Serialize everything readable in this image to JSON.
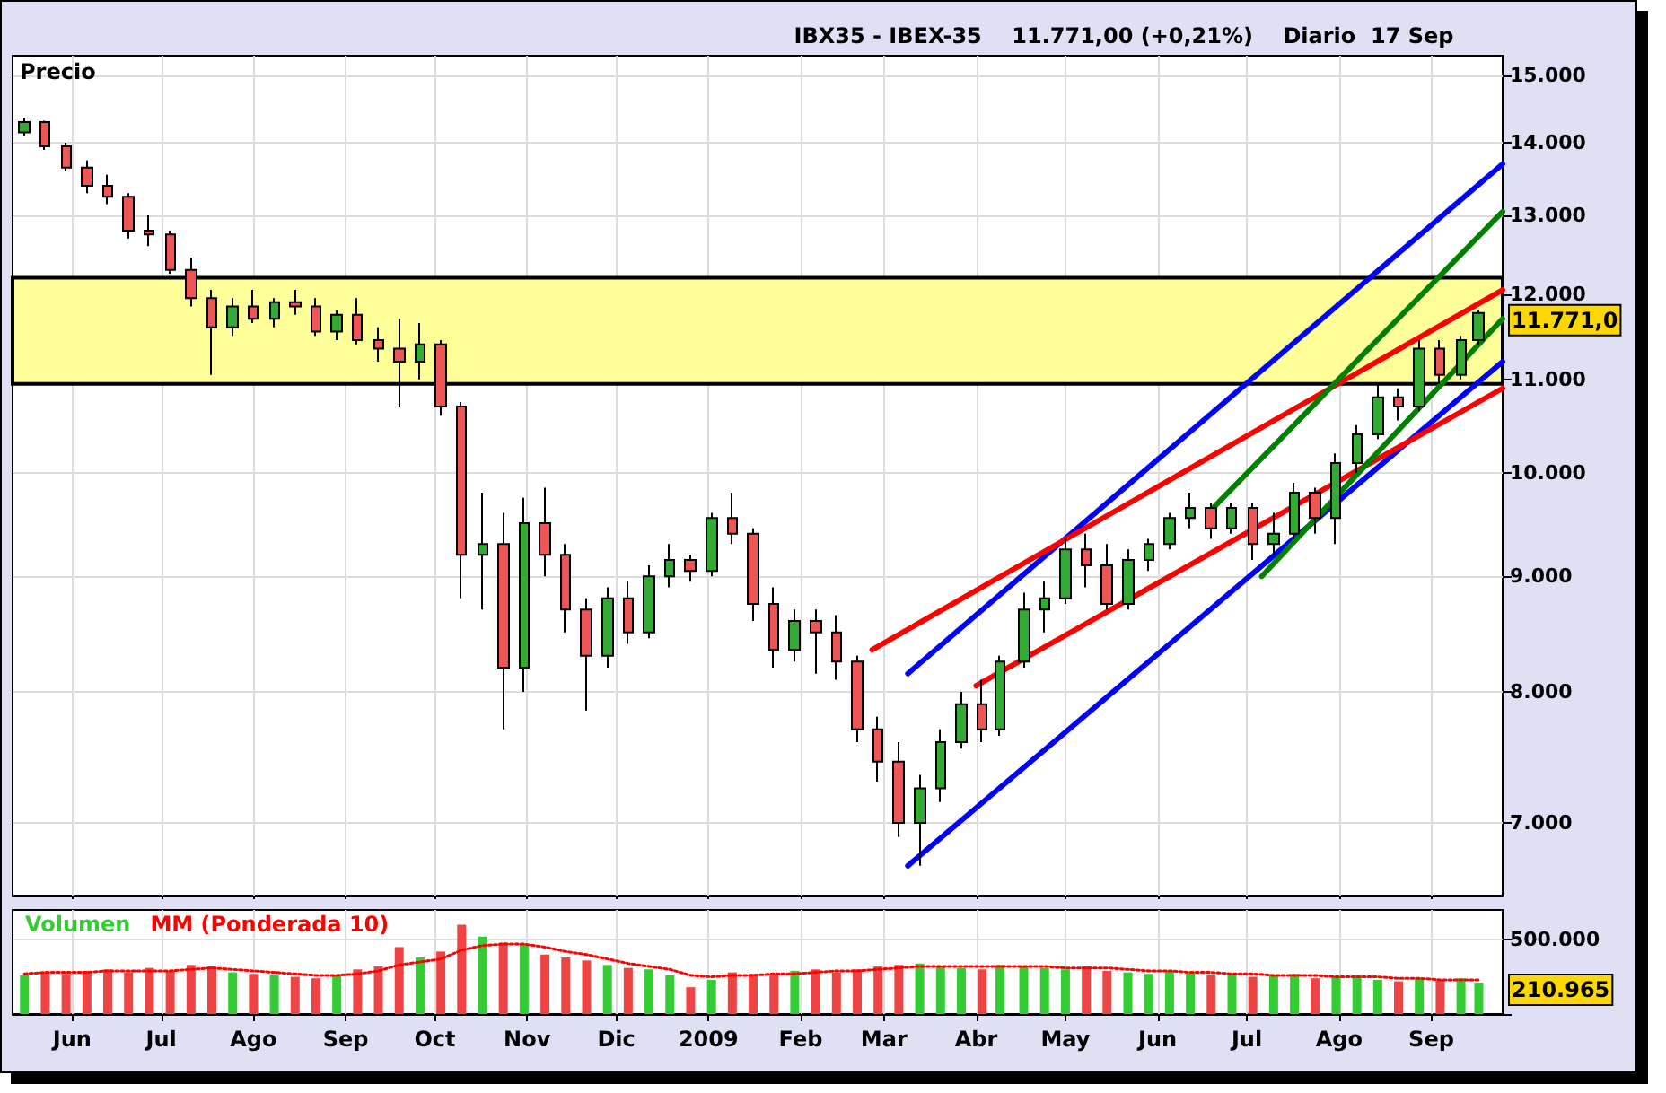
{
  "chart_data": [
    {
      "type": "candlestick",
      "title": "IBX35 - IBEX-35    11.771,00 (+0,21%)    Diario  17 Sep",
      "ylabel": "Precio",
      "x": [
        "2008-05-16",
        "2008-05-23",
        "2008-05-30",
        "2008-06-06",
        "2008-06-13",
        "2008-06-20",
        "2008-06-27",
        "2008-07-04",
        "2008-07-11",
        "2008-07-18",
        "2008-07-25",
        "2008-08-01",
        "2008-08-08",
        "2008-08-15",
        "2008-08-22",
        "2008-08-29",
        "2008-09-05",
        "2008-09-12",
        "2008-09-19",
        "2008-09-26",
        "2008-10-03",
        "2008-10-10",
        "2008-10-17",
        "2008-10-24",
        "2008-10-31",
        "2008-11-07",
        "2008-11-14",
        "2008-11-21",
        "2008-11-28",
        "2008-12-05",
        "2008-12-12",
        "2008-12-19",
        "2008-12-26",
        "2009-01-02",
        "2009-01-09",
        "2009-01-16",
        "2009-01-23",
        "2009-01-30",
        "2009-02-06",
        "2009-02-13",
        "2009-02-20",
        "2009-02-27",
        "2009-03-06",
        "2009-03-13",
        "2009-03-20",
        "2009-03-27",
        "2009-04-03",
        "2009-04-09",
        "2009-04-17",
        "2009-04-24",
        "2009-05-01",
        "2009-05-08",
        "2009-05-15",
        "2009-05-22",
        "2009-05-29",
        "2009-06-05",
        "2009-06-12",
        "2009-06-19",
        "2009-06-26",
        "2009-07-03",
        "2009-07-10",
        "2009-07-17",
        "2009-07-24",
        "2009-07-31",
        "2009-08-07",
        "2009-08-14",
        "2009-08-21",
        "2009-08-28",
        "2009-09-04",
        "2009-09-11",
        "2009-09-17"
      ],
      "ohlc": [
        [
          14150,
          14350,
          14100,
          14300
        ],
        [
          14300,
          14320,
          13900,
          13950
        ],
        [
          13950,
          14000,
          13600,
          13650
        ],
        [
          13650,
          13750,
          13300,
          13400
        ],
        [
          13400,
          13550,
          13150,
          13250
        ],
        [
          13250,
          13300,
          12700,
          12800
        ],
        [
          12800,
          13000,
          12600,
          12750
        ],
        [
          12750,
          12800,
          12250,
          12300
        ],
        [
          12300,
          12450,
          11850,
          11950
        ],
        [
          11950,
          12050,
          11050,
          11600
        ],
        [
          11600,
          11950,
          11500,
          11850
        ],
        [
          11850,
          12050,
          11650,
          11700
        ],
        [
          11700,
          11950,
          11600,
          11900
        ],
        [
          11900,
          12050,
          11750,
          11850
        ],
        [
          11850,
          11950,
          11500,
          11550
        ],
        [
          11550,
          11800,
          11450,
          11750
        ],
        [
          11750,
          11950,
          11400,
          11450
        ],
        [
          11450,
          11600,
          11200,
          11350
        ],
        [
          11350,
          11700,
          10700,
          11200
        ],
        [
          11200,
          11650,
          11000,
          11400
        ],
        [
          11400,
          11450,
          10600,
          10700
        ],
        [
          10700,
          10750,
          8800,
          9200
        ],
        [
          9200,
          9800,
          8700,
          9300
        ],
        [
          9300,
          9600,
          7700,
          8200
        ],
        [
          8200,
          9750,
          8000,
          9500
        ],
        [
          9500,
          9850,
          9000,
          9200
        ],
        [
          9200,
          9300,
          8500,
          8700
        ],
        [
          8700,
          8800,
          7850,
          8300
        ],
        [
          8300,
          8900,
          8200,
          8800
        ],
        [
          8800,
          8950,
          8400,
          8500
        ],
        [
          8500,
          9100,
          8450,
          9000
        ],
        [
          9000,
          9300,
          8900,
          9150
        ],
        [
          9150,
          9200,
          8950,
          9050
        ],
        [
          9050,
          9600,
          9000,
          9550
        ],
        [
          9550,
          9800,
          9300,
          9400
        ],
        [
          9400,
          9450,
          8600,
          8750
        ],
        [
          8750,
          8900,
          8200,
          8350
        ],
        [
          8350,
          8700,
          8250,
          8600
        ],
        [
          8600,
          8700,
          8150,
          8500
        ],
        [
          8500,
          8650,
          8100,
          8250
        ],
        [
          8250,
          8300,
          7600,
          7700
        ],
        [
          7700,
          7800,
          7300,
          7450
        ],
        [
          7450,
          7600,
          6900,
          7000
        ],
        [
          7000,
          7350,
          6700,
          7250
        ],
        [
          7250,
          7700,
          7150,
          7600
        ],
        [
          7600,
          8000,
          7550,
          7900
        ],
        [
          7900,
          8100,
          7600,
          7700
        ],
        [
          7700,
          8300,
          7650,
          8250
        ],
        [
          8250,
          8850,
          8200,
          8700
        ],
        [
          8700,
          8950,
          8500,
          8800
        ],
        [
          8800,
          9350,
          8750,
          9250
        ],
        [
          9250,
          9400,
          8900,
          9100
        ],
        [
          9100,
          9300,
          8700,
          8750
        ],
        [
          8750,
          9250,
          8700,
          9150
        ],
        [
          9150,
          9350,
          9050,
          9300
        ],
        [
          9300,
          9600,
          9250,
          9550
        ],
        [
          9550,
          9800,
          9450,
          9650
        ],
        [
          9650,
          9700,
          9350,
          9450
        ],
        [
          9450,
          9700,
          9400,
          9650
        ],
        [
          9650,
          9700,
          9150,
          9300
        ],
        [
          9300,
          9600,
          9200,
          9400
        ],
        [
          9400,
          9900,
          9350,
          9800
        ],
        [
          9800,
          9850,
          9400,
          9550
        ],
        [
          9550,
          10200,
          9300,
          10100
        ],
        [
          10100,
          10500,
          10000,
          10400
        ],
        [
          10400,
          10950,
          10350,
          10800
        ],
        [
          10800,
          10900,
          10550,
          10700
        ],
        [
          10700,
          11450,
          10650,
          11350
        ],
        [
          11350,
          11450,
          10950,
          11050
        ],
        [
          11050,
          11500,
          11000,
          11450
        ],
        [
          11450,
          11800,
          11400,
          11771
        ]
      ],
      "colors": [
        "#33aa33",
        "#ee5555",
        "#ee5555",
        "#ee5555",
        "#ee5555",
        "#ee5555",
        "#ee5555",
        "#ee5555",
        "#ee5555",
        "#ee5555",
        "#33aa33",
        "#ee5555",
        "#33aa33",
        "#ee5555",
        "#ee5555",
        "#33aa33",
        "#ee5555",
        "#ee5555",
        "#ee5555",
        "#33aa33",
        "#ee5555",
        "#ee5555",
        "#33aa33",
        "#ee5555",
        "#33aa33",
        "#ee5555",
        "#ee5555",
        "#ee5555",
        "#33aa33",
        "#ee5555",
        "#33aa33",
        "#33aa33",
        "#ee5555",
        "#33aa33",
        "#ee5555",
        "#ee5555",
        "#ee5555",
        "#33aa33",
        "#ee5555",
        "#ee5555",
        "#ee5555",
        "#ee5555",
        "#ee5555",
        "#33aa33",
        "#33aa33",
        "#33aa33",
        "#ee5555",
        "#33aa33",
        "#33aa33",
        "#33aa33",
        "#33aa33",
        "#ee5555",
        "#ee5555",
        "#33aa33",
        "#33aa33",
        "#33aa33",
        "#33aa33",
        "#ee5555",
        "#33aa33",
        "#ee5555",
        "#33aa33",
        "#33aa33",
        "#ee5555",
        "#33aa33",
        "#33aa33",
        "#33aa33",
        "#ee5555",
        "#33aa33",
        "#ee5555",
        "#33aa33",
        "#33aa33"
      ],
      "series": [
        {
          "type": "line",
          "color": "#0000ff",
          "x": [
            "2009-03-09",
            "2009-09-25"
          ],
          "values": [
            8150,
            13700
          ]
        },
        {
          "type": "line",
          "color": "#0000ff",
          "x": [
            "2009-03-09",
            "2009-09-25"
          ],
          "values": [
            6700,
            11200
          ]
        },
        {
          "type": "line",
          "color": "#ff0000",
          "x": [
            "2009-02-25",
            "2009-09-25"
          ],
          "values": [
            8350,
            12050
          ]
        },
        {
          "type": "line",
          "color": "#ff0000",
          "x": [
            "2009-04-01",
            "2009-09-25"
          ],
          "values": [
            8050,
            10900
          ]
        },
        {
          "type": "line",
          "color": "#008000",
          "x": [
            "2009-06-18",
            "2009-09-25"
          ],
          "values": [
            9600,
            13050
          ]
        },
        {
          "type": "line",
          "color": "#008000",
          "x": [
            "2009-07-06",
            "2009-09-25"
          ],
          "values": [
            9000,
            11700
          ]
        }
      ],
      "bands": [
        {
          "axis": "y",
          "from": 10950,
          "to": 12200,
          "color": "#ffff99"
        }
      ],
      "annotations": [
        {
          "text": "11.771,0",
          "x": "2009-09-17",
          "y": 11771
        }
      ],
      "xlim": [
        "2008-05-12",
        "2009-09-25"
      ],
      "xticks": [
        {
          "value": "2008-06-01",
          "label": null
        },
        {
          "value": "2008-07-01",
          "label": null
        },
        {
          "value": "2008-08-01",
          "label": null
        },
        {
          "value": "2008-09-01",
          "label": null
        },
        {
          "value": "2008-10-01",
          "label": null
        },
        {
          "value": "2008-11-01",
          "label": null
        },
        {
          "value": "2008-12-01",
          "label": null
        },
        {
          "value": "2009-01-01",
          "label": null
        },
        {
          "value": "2009-02-01",
          "label": null
        },
        {
          "value": "2009-03-01",
          "label": null
        },
        {
          "value": "2009-04-01",
          "label": null
        },
        {
          "value": "2009-05-01",
          "label": null
        },
        {
          "value": "2009-06-01",
          "label": null
        },
        {
          "value": "2009-07-01",
          "label": null
        },
        {
          "value": "2009-08-01",
          "label": null
        },
        {
          "value": "2009-09-01",
          "label": null
        }
      ],
      "ylim": [
        6500,
        15300
      ],
      "yticks": [
        {
          "value": 7000,
          "label": "7.000"
        },
        {
          "value": 8000,
          "label": "8.000"
        },
        {
          "value": 9000,
          "label": "9.000"
        },
        {
          "value": 10000,
          "label": "10.000"
        },
        {
          "value": 11000,
          "label": "11.000"
        },
        {
          "value": 12000,
          "label": "12.000"
        },
        {
          "value": 13000,
          "label": "13.000"
        },
        {
          "value": 14000,
          "label": "14.000"
        },
        {
          "value": 15000,
          "label": "15.000"
        }
      ],
      "log": true,
      "grid": true,
      "tick_labels": "y"
    },
    {
      "type": "bar",
      "x": [
        "2008-05-16",
        "2008-05-23",
        "2008-05-30",
        "2008-06-06",
        "2008-06-13",
        "2008-06-20",
        "2008-06-27",
        "2008-07-04",
        "2008-07-11",
        "2008-07-18",
        "2008-07-25",
        "2008-08-01",
        "2008-08-08",
        "2008-08-15",
        "2008-08-22",
        "2008-08-29",
        "2008-09-05",
        "2008-09-12",
        "2008-09-19",
        "2008-09-26",
        "2008-10-03",
        "2008-10-10",
        "2008-10-17",
        "2008-10-24",
        "2008-10-31",
        "2008-11-07",
        "2008-11-14",
        "2008-11-21",
        "2008-11-28",
        "2008-12-05",
        "2008-12-12",
        "2008-12-19",
        "2008-12-26",
        "2009-01-02",
        "2009-01-09",
        "2009-01-16",
        "2009-01-23",
        "2009-01-30",
        "2009-02-06",
        "2009-02-13",
        "2009-02-20",
        "2009-02-27",
        "2009-03-06",
        "2009-03-13",
        "2009-03-20",
        "2009-03-27",
        "2009-04-03",
        "2009-04-09",
        "2009-04-17",
        "2009-04-24",
        "2009-05-01",
        "2009-05-08",
        "2009-05-15",
        "2009-05-22",
        "2009-05-29",
        "2009-06-05",
        "2009-06-12",
        "2009-06-19",
        "2009-06-26",
        "2009-07-03",
        "2009-07-10",
        "2009-07-17",
        "2009-07-24",
        "2009-07-31",
        "2009-08-07",
        "2009-08-14",
        "2009-08-21",
        "2009-08-28",
        "2009-09-04",
        "2009-09-11",
        "2009-09-17"
      ],
      "series": [
        {
          "name": "Volumen",
          "type": "bar",
          "color": "#33cc33",
          "colors": [
            "#33cc33",
            "#ee4444",
            "#ee4444",
            "#ee4444",
            "#ee4444",
            "#ee4444",
            "#ee4444",
            "#ee4444",
            "#ee4444",
            "#ee4444",
            "#33cc33",
            "#ee4444",
            "#33cc33",
            "#ee4444",
            "#ee4444",
            "#33cc33",
            "#ee4444",
            "#ee4444",
            "#ee4444",
            "#33cc33",
            "#ee4444",
            "#ee4444",
            "#33cc33",
            "#ee4444",
            "#33cc33",
            "#ee4444",
            "#ee4444",
            "#ee4444",
            "#33cc33",
            "#ee4444",
            "#33cc33",
            "#33cc33",
            "#ee4444",
            "#33cc33",
            "#ee4444",
            "#ee4444",
            "#ee4444",
            "#33cc33",
            "#ee4444",
            "#ee4444",
            "#ee4444",
            "#ee4444",
            "#ee4444",
            "#33cc33",
            "#33cc33",
            "#33cc33",
            "#ee4444",
            "#33cc33",
            "#33cc33",
            "#33cc33",
            "#33cc33",
            "#ee4444",
            "#ee4444",
            "#33cc33",
            "#33cc33",
            "#33cc33",
            "#33cc33",
            "#ee4444",
            "#33cc33",
            "#ee4444",
            "#33cc33",
            "#33cc33",
            "#ee4444",
            "#33cc33",
            "#33cc33",
            "#33cc33",
            "#ee4444",
            "#33cc33",
            "#ee4444",
            "#33cc33",
            "#33cc33"
          ],
          "values": [
            260000,
            280000,
            270000,
            290000,
            300000,
            280000,
            310000,
            290000,
            330000,
            320000,
            280000,
            270000,
            260000,
            250000,
            240000,
            260000,
            300000,
            320000,
            450000,
            380000,
            420000,
            600000,
            520000,
            480000,
            470000,
            400000,
            380000,
            360000,
            330000,
            310000,
            300000,
            260000,
            180000,
            230000,
            280000,
            270000,
            260000,
            290000,
            300000,
            280000,
            300000,
            320000,
            330000,
            340000,
            320000,
            310000,
            300000,
            330000,
            320000,
            310000,
            300000,
            320000,
            290000,
            280000,
            270000,
            290000,
            280000,
            260000,
            270000,
            250000,
            260000,
            270000,
            240000,
            250000,
            260000,
            230000,
            220000,
            240000,
            230000,
            240000,
            210965
          ]
        },
        {
          "name": "MM (Ponderada 10)",
          "type": "line",
          "color": "#ff0000",
          "line_style": "dotted",
          "values": [
            270000,
            280000,
            280000,
            280000,
            290000,
            290000,
            290000,
            290000,
            300000,
            310000,
            300000,
            290000,
            280000,
            270000,
            260000,
            260000,
            270000,
            290000,
            330000,
            350000,
            370000,
            430000,
            460000,
            470000,
            470000,
            450000,
            420000,
            400000,
            370000,
            340000,
            320000,
            300000,
            260000,
            250000,
            260000,
            260000,
            270000,
            270000,
            280000,
            290000,
            290000,
            300000,
            310000,
            320000,
            320000,
            320000,
            320000,
            320000,
            320000,
            320000,
            310000,
            310000,
            310000,
            300000,
            290000,
            290000,
            280000,
            280000,
            270000,
            270000,
            260000,
            260000,
            260000,
            250000,
            250000,
            250000,
            240000,
            240000,
            230000,
            230000,
            230000
          ]
        }
      ],
      "annotations": [
        {
          "text": "210.965",
          "x": "2009-09-17",
          "y": 210965
        }
      ],
      "xlim": [
        "2008-05-12",
        "2009-09-25"
      ],
      "xticks": [
        {
          "value": "2008-06-01",
          "label": "Jun"
        },
        {
          "value": "2008-07-01",
          "label": "Jul"
        },
        {
          "value": "2008-08-01",
          "label": "Ago"
        },
        {
          "value": "2008-09-01",
          "label": "Sep"
        },
        {
          "value": "2008-10-01",
          "label": "Oct"
        },
        {
          "value": "2008-11-01",
          "label": "Nov"
        },
        {
          "value": "2008-12-01",
          "label": "Dic"
        },
        {
          "value": "2009-01-01",
          "label": "2009"
        },
        {
          "value": "2009-02-01",
          "label": "Feb"
        },
        {
          "value": "2009-03-01",
          "label": "Mar"
        },
        {
          "value": "2009-04-01",
          "label": "Abr"
        },
        {
          "value": "2009-05-01",
          "label": "May"
        },
        {
          "value": "2009-06-01",
          "label": "Jun"
        },
        {
          "value": "2009-07-01",
          "label": "Jul"
        },
        {
          "value": "2009-08-01",
          "label": "Ago"
        },
        {
          "value": "2009-09-01",
          "label": "Sep"
        }
      ],
      "ylim": [
        0,
        700000
      ],
      "yticks": [
        {
          "value": 0,
          "label": null
        },
        {
          "value": 500000,
          "label": "500.000"
        }
      ],
      "grid": true,
      "legend": "top left"
    }
  ]
}
